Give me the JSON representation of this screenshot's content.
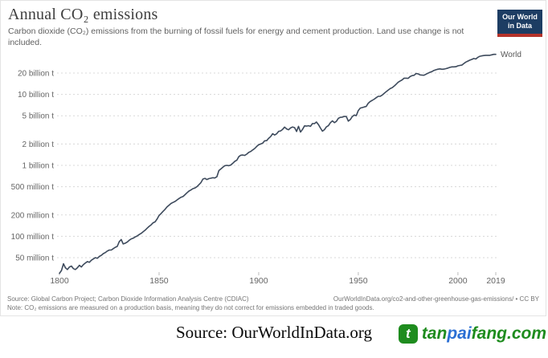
{
  "header": {
    "title": "Annual CO₂ emissions",
    "subtitle": "Carbon dioxide (CO₂) emissions from the burning of fossil fuels for energy and cement production. Land use change is not included.",
    "logo": {
      "line1": "Our World",
      "line2": "in Data",
      "bg_color": "#1d3d63",
      "stripe_color": "#b5332a"
    }
  },
  "footer": {
    "source": "Source: Global Carbon Project; Carbon Dioxide Information Analysis Centre (CDIAC)",
    "link": "OurWorldInData.org/co2-and-other-greenhouse-gas-emissions/ • CC BY",
    "note": "Note: CO₂ emissions are measured on a production basis, meaning they do not correct for emissions embedded in traded goods."
  },
  "bottom": {
    "source_text": "Source: OurWorldInData.org",
    "brand": {
      "icon_letter": "t",
      "segments": [
        {
          "text": "tan",
          "color": "#1e8c1e"
        },
        {
          "text": "pai",
          "color": "#2b6fd4"
        },
        {
          "text": "fang.com",
          "color": "#1e8c1e"
        }
      ]
    }
  },
  "chart_data": {
    "type": "line",
    "title": "Annual CO₂ emissions",
    "series_label": "World",
    "line_color": "#3d4a5c",
    "y_scale": "log",
    "values_unit": "million tonnes CO₂",
    "x_ticks": [
      1800,
      1850,
      1900,
      1950,
      2000,
      2019
    ],
    "y_ticks": [
      {
        "mt": 20000,
        "label": "20 billion t"
      },
      {
        "mt": 10000,
        "label": "10 billion t"
      },
      {
        "mt": 5000,
        "label": "5 billion t"
      },
      {
        "mt": 2000,
        "label": "2 billion t"
      },
      {
        "mt": 1000,
        "label": "1 billion t"
      },
      {
        "mt": 500,
        "label": "500 million t"
      },
      {
        "mt": 200,
        "label": "200 million t"
      },
      {
        "mt": 100,
        "label": "100 million t"
      },
      {
        "mt": 50,
        "label": "50 million t"
      }
    ],
    "xlim": [
      1800,
      2019
    ],
    "ylim_mt": [
      30,
      40000
    ],
    "grid": "dotted-horizontal",
    "series": [
      [
        1800,
        30
      ],
      [
        1801,
        33
      ],
      [
        1802,
        41
      ],
      [
        1803,
        36
      ],
      [
        1804,
        34
      ],
      [
        1805,
        37
      ],
      [
        1806,
        38
      ],
      [
        1807,
        35
      ],
      [
        1808,
        34
      ],
      [
        1809,
        36
      ],
      [
        1810,
        39
      ],
      [
        1811,
        37
      ],
      [
        1812,
        40
      ],
      [
        1813,
        42
      ],
      [
        1814,
        44
      ],
      [
        1815,
        43
      ],
      [
        1816,
        46
      ],
      [
        1817,
        48
      ],
      [
        1818,
        50
      ],
      [
        1819,
        49
      ],
      [
        1820,
        52
      ],
      [
        1821,
        54
      ],
      [
        1822,
        57
      ],
      [
        1823,
        59
      ],
      [
        1824,
        62
      ],
      [
        1825,
        64
      ],
      [
        1826,
        64
      ],
      [
        1827,
        67
      ],
      [
        1828,
        70
      ],
      [
        1829,
        72
      ],
      [
        1830,
        84
      ],
      [
        1831,
        90
      ],
      [
        1832,
        78
      ],
      [
        1833,
        80
      ],
      [
        1834,
        83
      ],
      [
        1835,
        88
      ],
      [
        1836,
        92
      ],
      [
        1837,
        94
      ],
      [
        1838,
        98
      ],
      [
        1839,
        101
      ],
      [
        1840,
        106
      ],
      [
        1841,
        110
      ],
      [
        1842,
        116
      ],
      [
        1843,
        122
      ],
      [
        1844,
        130
      ],
      [
        1845,
        138
      ],
      [
        1846,
        145
      ],
      [
        1847,
        155
      ],
      [
        1848,
        160
      ],
      [
        1849,
        175
      ],
      [
        1850,
        197
      ],
      [
        1851,
        210
      ],
      [
        1852,
        225
      ],
      [
        1853,
        240
      ],
      [
        1854,
        260
      ],
      [
        1855,
        275
      ],
      [
        1856,
        290
      ],
      [
        1857,
        300
      ],
      [
        1858,
        310
      ],
      [
        1859,
        325
      ],
      [
        1860,
        341
      ],
      [
        1861,
        355
      ],
      [
        1862,
        363
      ],
      [
        1863,
        385
      ],
      [
        1864,
        410
      ],
      [
        1865,
        435
      ],
      [
        1866,
        450
      ],
      [
        1867,
        470
      ],
      [
        1868,
        480
      ],
      [
        1869,
        500
      ],
      [
        1870,
        534
      ],
      [
        1871,
        570
      ],
      [
        1872,
        640
      ],
      [
        1873,
        655
      ],
      [
        1874,
        630
      ],
      [
        1875,
        650
      ],
      [
        1876,
        660
      ],
      [
        1877,
        670
      ],
      [
        1878,
        665
      ],
      [
        1879,
        690
      ],
      [
        1880,
        845
      ],
      [
        1881,
        890
      ],
      [
        1882,
        940
      ],
      [
        1883,
        990
      ],
      [
        1884,
        1000
      ],
      [
        1885,
        990
      ],
      [
        1886,
        1010
      ],
      [
        1887,
        1070
      ],
      [
        1888,
        1140
      ],
      [
        1889,
        1180
      ],
      [
        1890,
        1325
      ],
      [
        1891,
        1390
      ],
      [
        1892,
        1400
      ],
      [
        1893,
        1380
      ],
      [
        1894,
        1440
      ],
      [
        1895,
        1520
      ],
      [
        1896,
        1570
      ],
      [
        1897,
        1650
      ],
      [
        1898,
        1730
      ],
      [
        1899,
        1850
      ],
      [
        1900,
        1950
      ],
      [
        1901,
        2000
      ],
      [
        1902,
        2060
      ],
      [
        1903,
        2220
      ],
      [
        1904,
        2230
      ],
      [
        1905,
        2400
      ],
      [
        1906,
        2540
      ],
      [
        1907,
        2790
      ],
      [
        1908,
        2680
      ],
      [
        1909,
        2780
      ],
      [
        1910,
        3010
      ],
      [
        1911,
        3060
      ],
      [
        1912,
        3210
      ],
      [
        1913,
        3460
      ],
      [
        1914,
        3260
      ],
      [
        1915,
        3170
      ],
      [
        1916,
        3370
      ],
      [
        1917,
        3470
      ],
      [
        1918,
        3400
      ],
      [
        1919,
        3000
      ],
      [
        1920,
        3550
      ],
      [
        1921,
        2950
      ],
      [
        1922,
        3210
      ],
      [
        1923,
        3600
      ],
      [
        1924,
        3570
      ],
      [
        1925,
        3620
      ],
      [
        1926,
        3550
      ],
      [
        1927,
        3880
      ],
      [
        1928,
        3870
      ],
      [
        1929,
        4080
      ],
      [
        1930,
        3760
      ],
      [
        1931,
        3360
      ],
      [
        1932,
        3030
      ],
      [
        1933,
        3190
      ],
      [
        1934,
        3480
      ],
      [
        1935,
        3620
      ],
      [
        1936,
        4000
      ],
      [
        1937,
        4230
      ],
      [
        1938,
        4000
      ],
      [
        1939,
        4170
      ],
      [
        1940,
        4600
      ],
      [
        1941,
        4750
      ],
      [
        1942,
        4790
      ],
      [
        1943,
        4900
      ],
      [
        1944,
        4870
      ],
      [
        1945,
        4200
      ],
      [
        1946,
        4430
      ],
      [
        1947,
        4890
      ],
      [
        1948,
        5120
      ],
      [
        1949,
        5010
      ],
      [
        1950,
        5930
      ],
      [
        1951,
        6430
      ],
      [
        1952,
        6520
      ],
      [
        1953,
        6660
      ],
      [
        1954,
        6760
      ],
      [
        1955,
        7510
      ],
      [
        1956,
        7950
      ],
      [
        1957,
        8240
      ],
      [
        1958,
        8570
      ],
      [
        1959,
        8990
      ],
      [
        1960,
        9390
      ],
      [
        1961,
        9420
      ],
      [
        1962,
        9800
      ],
      [
        1963,
        10340
      ],
      [
        1964,
        10920
      ],
      [
        1965,
        11470
      ],
      [
        1966,
        12050
      ],
      [
        1967,
        12450
      ],
      [
        1968,
        13090
      ],
      [
        1969,
        13870
      ],
      [
        1970,
        14860
      ],
      [
        1971,
        15430
      ],
      [
        1972,
        16040
      ],
      [
        1973,
        16920
      ],
      [
        1974,
        16940
      ],
      [
        1975,
        16850
      ],
      [
        1976,
        17820
      ],
      [
        1977,
        18400
      ],
      [
        1978,
        18610
      ],
      [
        1979,
        19660
      ],
      [
        1980,
        19470
      ],
      [
        1981,
        18850
      ],
      [
        1982,
        18700
      ],
      [
        1983,
        18640
      ],
      [
        1984,
        19280
      ],
      [
        1985,
        19870
      ],
      [
        1986,
        20500
      ],
      [
        1987,
        21010
      ],
      [
        1988,
        21800
      ],
      [
        1989,
        22230
      ],
      [
        1990,
        22640
      ],
      [
        1991,
        22880
      ],
      [
        1992,
        22580
      ],
      [
        1993,
        22700
      ],
      [
        1994,
        23090
      ],
      [
        1995,
        23470
      ],
      [
        1996,
        24050
      ],
      [
        1997,
        24410
      ],
      [
        1998,
        24430
      ],
      [
        1999,
        24550
      ],
      [
        2000,
        25250
      ],
      [
        2001,
        25620
      ],
      [
        2002,
        25860
      ],
      [
        2003,
        27240
      ],
      [
        2004,
        28570
      ],
      [
        2005,
        29490
      ],
      [
        2006,
        30450
      ],
      [
        2007,
        31130
      ],
      [
        2008,
        32040
      ],
      [
        2009,
        31500
      ],
      [
        2010,
        33340
      ],
      [
        2011,
        34450
      ],
      [
        2012,
        34900
      ],
      [
        2013,
        35270
      ],
      [
        2014,
        35560
      ],
      [
        2015,
        35540
      ],
      [
        2016,
        35520
      ],
      [
        2017,
        36100
      ],
      [
        2018,
        36650
      ],
      [
        2019,
        36700
      ]
    ]
  }
}
